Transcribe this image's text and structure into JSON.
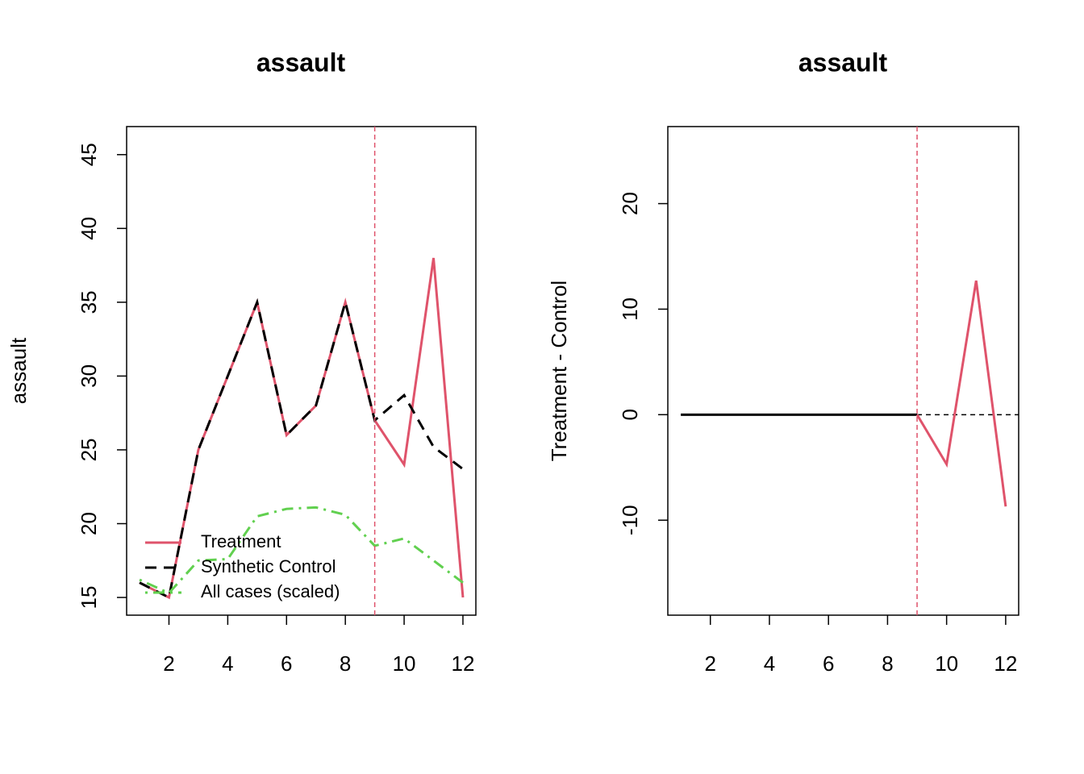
{
  "chart_data": [
    {
      "type": "line",
      "title": "assault",
      "ylabel": "assault",
      "x": [
        1,
        2,
        3,
        4,
        5,
        6,
        7,
        8,
        9,
        10,
        11,
        12
      ],
      "series": [
        {
          "name": "Treatment",
          "color": "#DF536B",
          "linestyle": "solid",
          "values": [
            16,
            15,
            25,
            30,
            35,
            26,
            28,
            35,
            27,
            24,
            38,
            15
          ]
        },
        {
          "name": "Synthetic Control",
          "color": "#000000",
          "linestyle": "dashed",
          "values": [
            16,
            15,
            25,
            30,
            35,
            26,
            28,
            35,
            27,
            28.7,
            25.2,
            23.7
          ]
        },
        {
          "name": "All cases (scaled)",
          "color": "#61D04F",
          "linestyle": "dotdash",
          "values": [
            16.2,
            15.3,
            17.5,
            17.6,
            20.5,
            21.0,
            21.1,
            20.6,
            18.5,
            19.0,
            17.5,
            16.0
          ]
        }
      ],
      "vline": 9,
      "vline_color": "#DF536B",
      "xlim": [
        0.56,
        12.44
      ],
      "xticks": [
        2,
        4,
        6,
        8,
        10,
        12
      ],
      "ylim": [
        13.8,
        46.9
      ],
      "yticks": [
        15,
        20,
        25,
        30,
        35,
        40,
        45
      ],
      "legend": "bottomleft"
    },
    {
      "type": "line",
      "title": "assault",
      "ylabel": "Treatment - Control",
      "x": [
        1,
        2,
        3,
        4,
        5,
        6,
        7,
        8,
        9,
        10,
        11,
        12
      ],
      "series": [
        {
          "color": "#000000",
          "linestyle": "solid",
          "values": [
            0,
            0,
            0,
            0,
            0,
            0,
            0,
            0,
            0,
            null,
            null,
            null
          ]
        },
        {
          "color": "#DF536B",
          "linestyle": "solid",
          "values": [
            null,
            null,
            null,
            null,
            null,
            null,
            null,
            null,
            0,
            -4.7,
            12.7,
            -8.7
          ]
        }
      ],
      "vline": 9,
      "vline_color": "#DF536B",
      "hline": 0,
      "xlim": [
        0.56,
        12.44
      ],
      "xticks": [
        2,
        4,
        6,
        8,
        10,
        12
      ],
      "ylim": [
        -19.0,
        27.3
      ],
      "yticks": [
        -10,
        0,
        10,
        20
      ]
    }
  ]
}
